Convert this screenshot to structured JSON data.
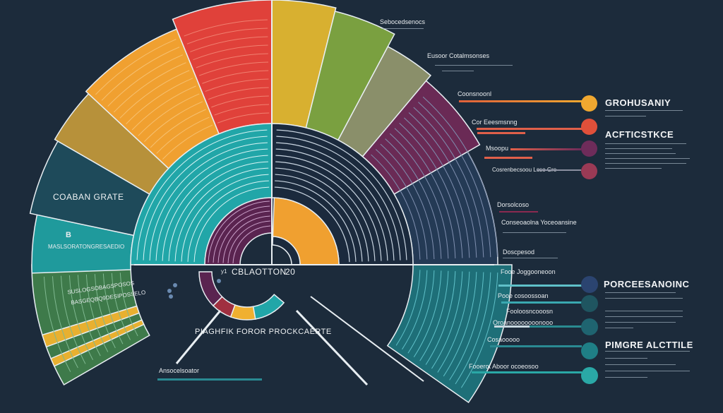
{
  "center": {
    "title": "CBLAOTTON",
    "prefix": "​у1",
    "number": "20"
  },
  "left_labels": {
    "grate": "COABAN GRATE",
    "b_mark": "B",
    "band_text": "MASLSORATONGRESAEDIO",
    "lower_text_1": "SUSLOGSOBAGSPOSOS",
    "lower_text_2": "BASGEQBQ9DESIPOSSELO"
  },
  "bottom": {
    "heading": "PIAGHFIK FOROR PROCKCAERTE",
    "caption": "Ansocelsoator"
  },
  "top_labels": {
    "top": "Sebocedsenocs",
    "second": "Eusoor Cotalmsonses"
  },
  "right_upper": [
    {
      "label": "Coonsnoonl",
      "color": "#f0a830"
    },
    {
      "label": "Cor Eeesmsnng",
      "color": "#e0503a"
    },
    {
      "label": "Msoopu",
      "color": "#6e2c5a"
    },
    {
      "label": "Cosrenbecsoou Loso Gre",
      "color": "#9a3a55"
    }
  ],
  "right_headings": {
    "h1": "GROHUSANIY",
    "h2": "ACFTICSTKCE",
    "h3": "PORCEESANOINC",
    "h4": "PIMGRE ALCTTILE"
  },
  "right_middle": [
    {
      "label": "Dorsolcoso"
    },
    {
      "label": "Conseoaolna Yoceoansine"
    },
    {
      "label": "Doscpesod"
    }
  ],
  "right_lower": [
    {
      "label": "Fooe Joggooneoon",
      "color": "#2b4470"
    },
    {
      "label": "Pooe cosoossoan",
      "color": "#1f5560"
    },
    {
      "label": "Fooloosncooosn",
      "color": "#1f6470"
    },
    {
      "label": "Oroanoooooooonooo",
      "color": "#1c6a74"
    },
    {
      "label": "Cosaooooo",
      "color": "#1f7f86"
    },
    {
      "label": "Fooerot Aboor ocoeosoo",
      "color": "#2aa8a6"
    }
  ],
  "colors": {
    "background": "#1c2b3b",
    "teal": "#21a6a8",
    "orange": "#f0a030",
    "red": "#e0413a",
    "purple": "#6a2a55",
    "green": "#3e7a4a"
  }
}
